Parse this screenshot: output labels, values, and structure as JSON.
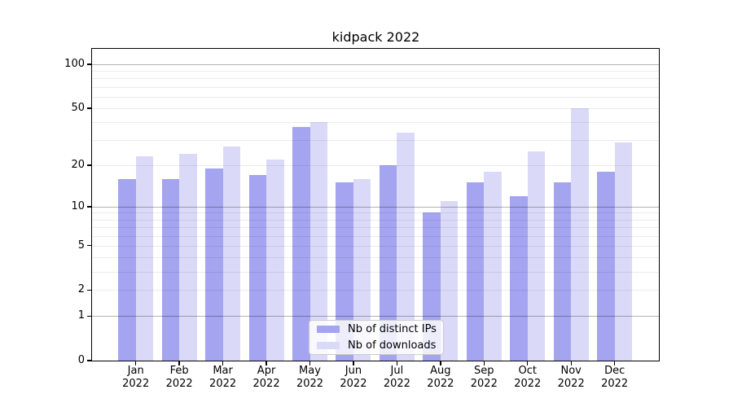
{
  "chart_data": {
    "type": "bar",
    "title": "kidpack 2022",
    "categories": [
      "Jan 2022",
      "Feb 2022",
      "Mar 2022",
      "Apr 2022",
      "May 2022",
      "Jun 2022",
      "Jul 2022",
      "Aug 2022",
      "Sep 2022",
      "Oct 2022",
      "Nov 2022",
      "Dec 2022"
    ],
    "series": [
      {
        "name": "Nb of distinct IPs",
        "color": "#a4a4f0",
        "values": [
          16,
          16,
          19,
          17,
          37,
          15,
          20,
          9,
          15,
          12,
          15,
          18
        ]
      },
      {
        "name": "Nb of downloads",
        "color": "#dadaf8",
        "values": [
          23,
          24,
          27,
          22,
          40,
          16,
          34,
          11,
          18,
          25,
          50,
          29
        ]
      }
    ],
    "xlabel": "",
    "ylabel": "",
    "yscale": "log1p",
    "ylim": [
      0,
      127.5
    ],
    "yticks": [
      100,
      50,
      20,
      10,
      5,
      2,
      1,
      0
    ],
    "gridlines": {
      "major": [
        1,
        10,
        100
      ],
      "minor": [
        2,
        3,
        4,
        5,
        6,
        7,
        8,
        9,
        20,
        30,
        40,
        50,
        60,
        70,
        80,
        90
      ]
    },
    "legend": {
      "position": "lower center",
      "entries": [
        "Nb of distinct IPs",
        "Nb of downloads"
      ]
    },
    "grid": true,
    "colors": {
      "bar_distinct_ips": "#a4a4f0",
      "bar_downloads": "#dadaf8",
      "grid_major": "#b3b3b3",
      "grid_minor": "#ebebeb",
      "spine": "#000000",
      "text": "#000000",
      "legend_border": "#cccccc"
    }
  }
}
